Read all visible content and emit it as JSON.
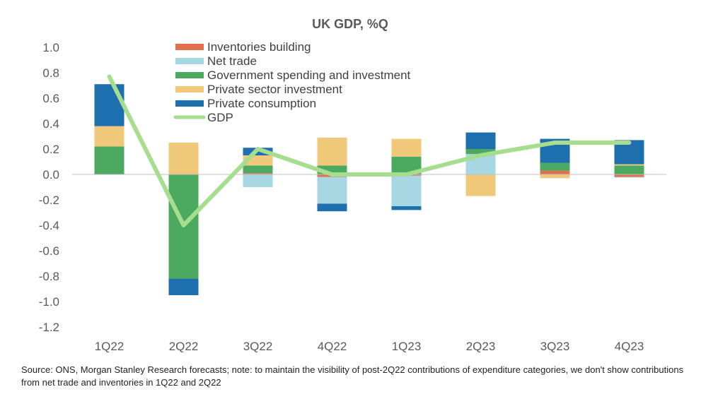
{
  "chart_data": {
    "type": "bar",
    "title": "UK GDP, %Q",
    "categories": [
      "1Q22",
      "2Q22",
      "3Q22",
      "4Q22",
      "1Q23",
      "2Q23",
      "3Q23",
      "4Q23"
    ],
    "ylim": [
      -1.2,
      1.0
    ],
    "yticks": [
      "1.0",
      "0.8",
      "0.6",
      "0.4",
      "0.2",
      "0.0",
      "-0.2",
      "-0.4",
      "-0.6",
      "-0.8",
      "-1.0",
      "-1.2"
    ],
    "grid": false,
    "legend_position": "top-center",
    "series": [
      {
        "name": "Inventories building",
        "kind": "bar",
        "color": "#E2704F",
        "values": [
          0,
          0,
          0.01,
          -0.02,
          -0.01,
          0,
          0.03,
          -0.02
        ]
      },
      {
        "name": "Net trade",
        "kind": "bar",
        "color": "#A6D7E3",
        "values": [
          0,
          0,
          -0.1,
          -0.21,
          -0.24,
          0.16,
          0,
          -0.005
        ]
      },
      {
        "name": "Government spending and investment",
        "kind": "bar",
        "color": "#4BAA5F",
        "values": [
          0.22,
          -0.82,
          0.06,
          0.07,
          0.14,
          0.04,
          0.06,
          0.07
        ]
      },
      {
        "name": "Private sector investment",
        "kind": "bar",
        "color": "#F0C87A",
        "values": [
          0.16,
          0.25,
          0.08,
          0.22,
          0.14,
          -0.17,
          -0.03,
          0.01
        ]
      },
      {
        "name": "Private consumption",
        "kind": "bar",
        "color": "#1E6FAE",
        "values": [
          0.33,
          -0.13,
          0.06,
          -0.06,
          -0.03,
          0.13,
          0.19,
          0.19
        ]
      },
      {
        "name": "GDP",
        "kind": "line",
        "color": "#A6DD8E",
        "values": [
          0.77,
          -0.4,
          0.2,
          0.0,
          0.0,
          0.15,
          0.25,
          0.25
        ]
      }
    ]
  },
  "source_note": "Source: ONS, Morgan Stanley Research forecasts; note: to maintain the visibility of post-2Q22 contributions of expenditure categories, we don't show contributions from net trade and inventories in 1Q22 and 2Q22"
}
